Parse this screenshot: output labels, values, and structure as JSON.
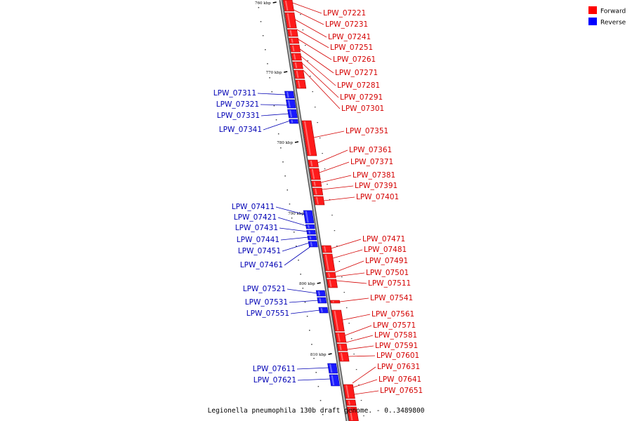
{
  "legend": {
    "forward_label": "Forward",
    "reverse_label": "Reverse",
    "forward_color": "#ff0000",
    "reverse_color": "#0000ff"
  },
  "caption": "Legionella pneumophila 130b draft genome. - 0..3489800",
  "ticks": [
    {
      "label": "760 kbp"
    },
    {
      "label": "770 kbp"
    },
    {
      "label": "780 kbp"
    },
    {
      "label": "790 kbp"
    },
    {
      "label": "800 kbp"
    },
    {
      "label": "810 kbp"
    }
  ],
  "forward_genes": [
    "LPW_07221",
    "LPW_07231",
    "LPW_07241",
    "LPW_07251",
    "LPW_07261",
    "LPW_07271",
    "LPW_07281",
    "LPW_07291",
    "LPW_07301",
    "LPW_07351",
    "LPW_07361",
    "LPW_07371",
    "LPW_07381",
    "LPW_07391",
    "LPW_07401",
    "LPW_07471",
    "LPW_07481",
    "LPW_07491",
    "LPW_07501",
    "LPW_07511",
    "LPW_07541",
    "LPW_07561",
    "LPW_07571",
    "LPW_07581",
    "LPW_07591",
    "LPW_07601",
    "LPW_07631",
    "LPW_07641",
    "LPW_07651"
  ],
  "reverse_genes": [
    "LPW_07311",
    "LPW_07321",
    "LPW_07331",
    "LPW_07341",
    "LPW_07411",
    "LPW_07421",
    "LPW_07431",
    "LPW_07441",
    "LPW_07451",
    "LPW_07461",
    "LPW_07521",
    "LPW_07531",
    "LPW_07551",
    "LPW_07611",
    "LPW_07621"
  ]
}
